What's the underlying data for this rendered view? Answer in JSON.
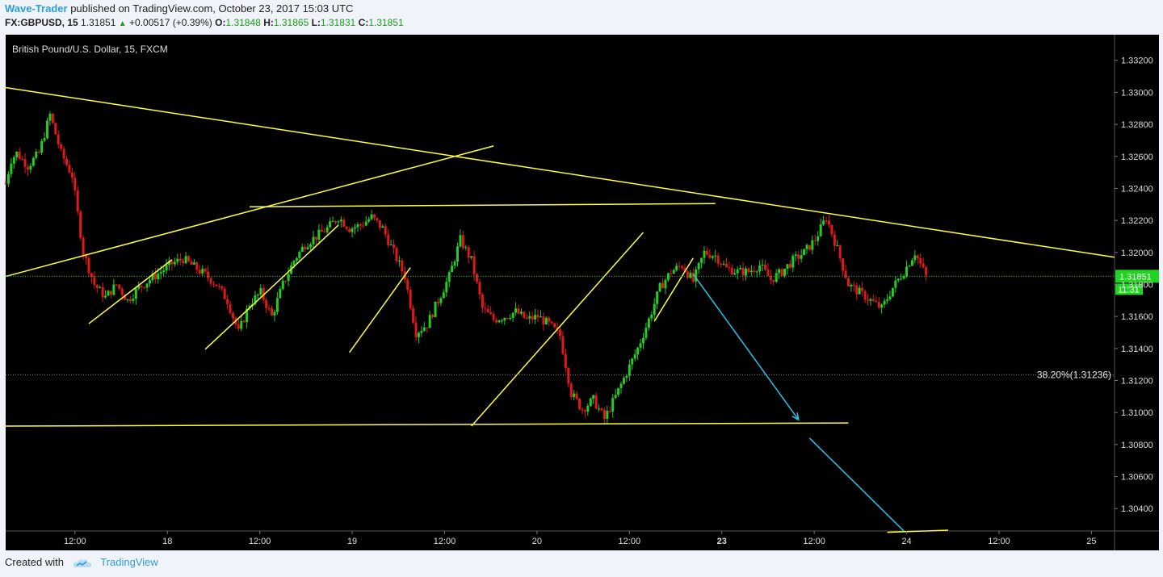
{
  "header": {
    "author": "Wave-Trader",
    "published_text": "published on TradingView.com, October 23, 2017 15:03 UTC",
    "symbol": "FX:GBPUSD, 15",
    "last": "1.31851",
    "change": "+0.00517 (+0.39%)",
    "o_label": "O:",
    "o": "1.31848",
    "h_label": "H:",
    "h": "1.31865",
    "l_label": "L:",
    "l": "1.31831",
    "c_label": "C:",
    "c": "1.31851"
  },
  "chart_data": {
    "type": "candlestick",
    "title": "British Pound/U.S. Dollar, 15, FXCM",
    "y_ticks": [
      "1.33200",
      "1.33000",
      "1.32800",
      "1.32600",
      "1.32400",
      "1.32200",
      "1.32000",
      "1.31800",
      "1.31600",
      "1.31400",
      "1.31200",
      "1.31000",
      "1.30800",
      "1.30600",
      "1.30400"
    ],
    "x_ticks": [
      "12:00",
      "18",
      "12:00",
      "19",
      "12:00",
      "20",
      "12:00",
      "23",
      "12:00",
      "24",
      "12:00",
      "25"
    ],
    "bold_x_tick": "23",
    "ylim": [
      1.3026,
      1.3336
    ],
    "last_price_label": "1.31851",
    "countdown_label": "11:31",
    "fib_label": "38.20%(1.31236)",
    "fib_value": 1.31236,
    "path": [
      [
        0,
        1.3243
      ],
      [
        1,
        1.3258
      ],
      [
        2,
        1.3262
      ],
      [
        4,
        1.3254
      ],
      [
        6,
        1.3262
      ],
      [
        8,
        1.3286
      ],
      [
        10,
        1.3262
      ],
      [
        12,
        1.3248
      ],
      [
        14,
        1.32
      ],
      [
        16,
        1.318
      ],
      [
        18,
        1.3172
      ],
      [
        20,
        1.318
      ],
      [
        22,
        1.317
      ],
      [
        24,
        1.3178
      ],
      [
        26,
        1.3183
      ],
      [
        28,
        1.3188
      ],
      [
        30,
        1.3193
      ],
      [
        32,
        1.3196
      ],
      [
        34,
        1.3191
      ],
      [
        36,
        1.3186
      ],
      [
        38,
        1.318
      ],
      [
        40,
        1.317
      ],
      [
        42,
        1.315
      ],
      [
        44,
        1.3168
      ],
      [
        46,
        1.3175
      ],
      [
        48,
        1.316
      ],
      [
        50,
        1.318
      ],
      [
        52,
        1.3195
      ],
      [
        54,
        1.3205
      ],
      [
        56,
        1.321
      ],
      [
        58,
        1.3215
      ],
      [
        60,
        1.3222
      ],
      [
        62,
        1.3215
      ],
      [
        64,
        1.3217
      ],
      [
        66,
        1.3222
      ],
      [
        68,
        1.3215
      ],
      [
        70,
        1.32
      ],
      [
        72,
        1.3185
      ],
      [
        74,
        1.315
      ],
      [
        76,
        1.3155
      ],
      [
        78,
        1.317
      ],
      [
        80,
        1.3185
      ],
      [
        82,
        1.3208
      ],
      [
        84,
        1.3195
      ],
      [
        86,
        1.3165
      ],
      [
        88,
        1.3158
      ],
      [
        90,
        1.316
      ],
      [
        92,
        1.3163
      ],
      [
        94,
        1.3158
      ],
      [
        96,
        1.316
      ],
      [
        98,
        1.3155
      ],
      [
        100,
        1.3148
      ],
      [
        102,
        1.3112
      ],
      [
        104,
        1.3102
      ],
      [
        106,
        1.3108
      ],
      [
        108,
        1.3096
      ],
      [
        110,
        1.311
      ],
      [
        112,
        1.3125
      ],
      [
        114,
        1.314
      ],
      [
        116,
        1.3158
      ],
      [
        118,
        1.3178
      ],
      [
        120,
        1.3188
      ],
      [
        122,
        1.3192
      ],
      [
        124,
        1.3182
      ],
      [
        126,
        1.32
      ],
      [
        128,
        1.3198
      ],
      [
        130,
        1.319
      ],
      [
        132,
        1.3188
      ],
      [
        134,
        1.3188
      ],
      [
        136,
        1.3192
      ],
      [
        138,
        1.3183
      ],
      [
        140,
        1.3188
      ],
      [
        142,
        1.3195
      ],
      [
        144,
        1.32
      ],
      [
        146,
        1.3208
      ],
      [
        148,
        1.3222
      ],
      [
        150,
        1.3202
      ],
      [
        152,
        1.318
      ],
      [
        154,
        1.3175
      ],
      [
        156,
        1.317
      ],
      [
        158,
        1.3165
      ],
      [
        160,
        1.3178
      ],
      [
        162,
        1.3188
      ],
      [
        164,
        1.32
      ],
      [
        166,
        1.3185
      ]
    ],
    "trend_lines": [
      {
        "x1": 0,
        "y1": 1.3303,
        "x2": 200,
        "y2": 1.3197
      },
      {
        "x1": 0,
        "y1": 1.3185,
        "x2": 88,
        "y2": 1.32665
      },
      {
        "x1": 44,
        "y1": 1.32285,
        "x2": 128,
        "y2": 1.32305
      },
      {
        "x1": 0,
        "y1": 1.30915,
        "x2": 152,
        "y2": 1.30935
      },
      {
        "x1": 15,
        "y1": 1.31555,
        "x2": 30,
        "y2": 1.31955
      },
      {
        "x1": 36,
        "y1": 1.31395,
        "x2": 60,
        "y2": 1.3217
      },
      {
        "x1": 62,
        "y1": 1.31375,
        "x2": 73,
        "y2": 1.31905
      },
      {
        "x1": 84,
        "y1": 1.30915,
        "x2": 115,
        "y2": 1.32125
      },
      {
        "x1": 117,
        "y1": 1.3157,
        "x2": 124,
        "y2": 1.31965
      },
      {
        "x1": 159,
        "y1": 1.30252,
        "x2": 170,
        "y2": 1.30265
      }
    ],
    "projection_arrows": [
      {
        "x1": 124,
        "y1": 1.31865,
        "x2": 143,
        "y2": 1.30955
      },
      {
        "x1": 145,
        "y1": 1.3084,
        "x2": 162,
        "y2": 1.3026
      }
    ]
  },
  "footer": {
    "created_with": "Created with",
    "brand": "TradingView"
  },
  "colors": {
    "background": "#000000",
    "up_candle": "#22cc22",
    "down_candle": "#e01818",
    "trend_line": "#ffff33",
    "projection": "#26c6e6",
    "last_price_badge": "#22d422",
    "axis_text": "#dddddd"
  }
}
